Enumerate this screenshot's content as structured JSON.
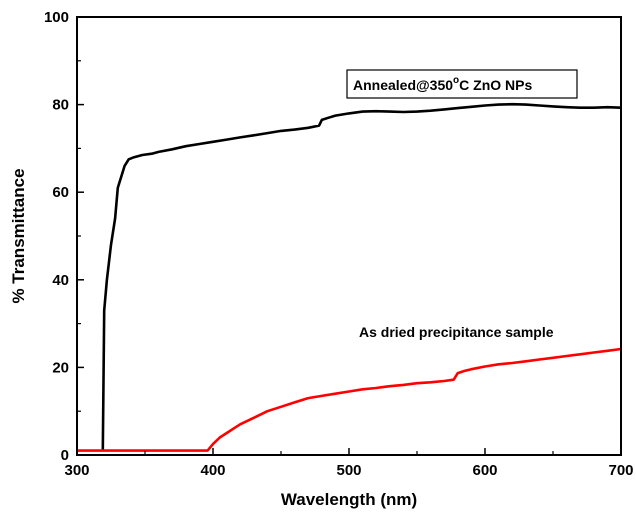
{
  "chart_data": {
    "type": "line",
    "xlabel": "Wavelength (nm)",
    "ylabel": "% Transmittance",
    "xlim": [
      300,
      700
    ],
    "ylim": [
      0,
      100
    ],
    "xticks": [
      300,
      400,
      500,
      600,
      700
    ],
    "yticks": [
      0,
      20,
      40,
      60,
      80,
      100
    ],
    "grid": false,
    "annotations": [
      {
        "text_main": "Annealed@350",
        "text_sup": "o",
        "text_tail": "C ZnO NPs",
        "boxed": true,
        "series": "annealed"
      },
      {
        "text": "As dried precipitance sample",
        "boxed": false,
        "series": "dried"
      }
    ],
    "series": [
      {
        "id": "annealed",
        "color": "#000000",
        "x": [
          319,
          320,
          322,
          325,
          328,
          330,
          332,
          335,
          338,
          342,
          348,
          355,
          360,
          370,
          380,
          390,
          400,
          410,
          420,
          430,
          440,
          450,
          460,
          470,
          478,
          480,
          485,
          490,
          500,
          510,
          520,
          530,
          540,
          550,
          560,
          570,
          580,
          590,
          600,
          610,
          620,
          630,
          640,
          650,
          660,
          670,
          680,
          690,
          700
        ],
        "y": [
          1,
          33,
          40,
          48,
          54,
          61,
          63,
          66,
          67.5,
          68,
          68.5,
          68.8,
          69.2,
          69.8,
          70.5,
          71,
          71.5,
          72,
          72.5,
          73,
          73.5,
          74,
          74.3,
          74.7,
          75.2,
          76.5,
          77,
          77.5,
          78,
          78.4,
          78.5,
          78.4,
          78.3,
          78.4,
          78.6,
          78.9,
          79.2,
          79.5,
          79.8,
          80,
          80.1,
          80,
          79.8,
          79.6,
          79.4,
          79.3,
          79.3,
          79.4,
          79.3
        ]
      },
      {
        "id": "dried",
        "color": "#ff0000",
        "x": [
          300,
          320,
          340,
          360,
          380,
          396,
          400,
          405,
          410,
          415,
          420,
          430,
          440,
          450,
          460,
          470,
          480,
          490,
          500,
          510,
          520,
          530,
          540,
          550,
          560,
          570,
          577,
          580,
          585,
          590,
          600,
          610,
          620,
          630,
          640,
          650,
          660,
          670,
          680,
          690,
          700
        ],
        "y": [
          1,
          1,
          1,
          1,
          1,
          1,
          2.5,
          4,
          5,
          6,
          7,
          8.5,
          10,
          11,
          12,
          13,
          13.5,
          14,
          14.5,
          15,
          15.3,
          15.7,
          16,
          16.4,
          16.6,
          16.9,
          17.2,
          18.7,
          19.2,
          19.6,
          20.2,
          20.7,
          21,
          21.4,
          21.8,
          22.2,
          22.6,
          23,
          23.4,
          23.8,
          24.2
        ]
      }
    ]
  }
}
